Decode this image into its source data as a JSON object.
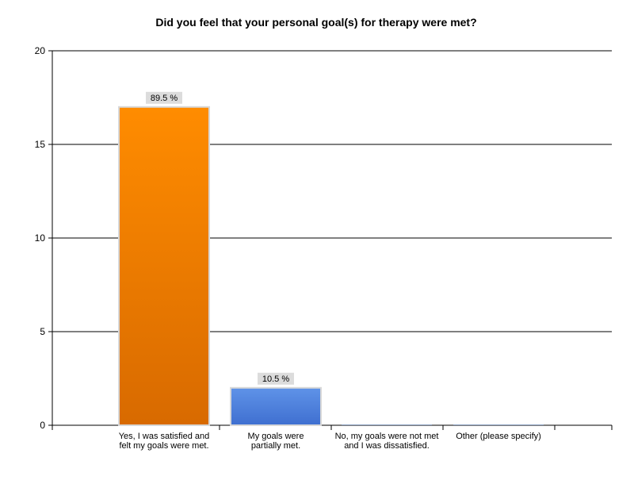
{
  "chart_data": {
    "type": "bar",
    "title": "Did you feel that your personal goal(s) for therapy were met?",
    "xlabel": "",
    "ylabel": "",
    "ylim": [
      0,
      20
    ],
    "yticks": [
      0,
      5,
      10,
      15,
      20
    ],
    "grid": true,
    "categories": [
      [
        "Yes, I was satisfied and",
        "felt my goals were met."
      ],
      [
        "My goals were",
        "partially met."
      ],
      [
        "No, my goals were not met",
        "and I was dissatisfied."
      ],
      [
        "Other (please specify)"
      ]
    ],
    "values": [
      17,
      2,
      0,
      0
    ],
    "data_labels": [
      "89.5 %",
      "10.5 %",
      "",
      ""
    ],
    "bar_colors": [
      [
        "#ff8c00",
        "#d86a00"
      ],
      [
        "#5f93e8",
        "#3f6fd0"
      ],
      [
        "#8aa0c0",
        "#8aa0c0"
      ],
      [
        "#8aa0c0",
        "#8aa0c0"
      ]
    ]
  }
}
